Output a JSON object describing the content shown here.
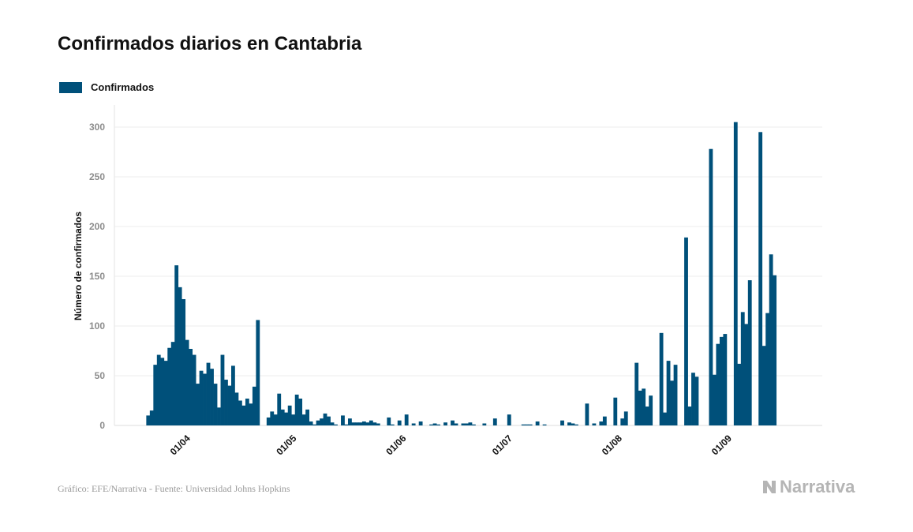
{
  "title": "Confirmados diarios en Cantabria",
  "legend": {
    "label": "Confirmados"
  },
  "footer": "Gráfico: EFE/Narrativa - Fuente: Universidad Johns Hopkins",
  "brand": "Narrativa",
  "colors": {
    "bar": "#00507a",
    "grid": "#ececec",
    "tick": "#8c8c8c",
    "title": "#111111"
  },
  "chart_data": {
    "type": "bar",
    "title": "Confirmados diarios en Cantabria",
    "xlabel": "",
    "ylabel": "Número de confirmados",
    "ylim": [
      0,
      320
    ],
    "yticks": [
      0,
      50,
      100,
      150,
      200,
      250,
      300
    ],
    "grid": true,
    "legend_position": "top-left",
    "x_start": "2020-03-12",
    "x_end": "2020-09-28",
    "xticks": [
      {
        "date": "2020-04-01",
        "label": "01/04"
      },
      {
        "date": "2020-05-01",
        "label": "01/05"
      },
      {
        "date": "2020-06-01",
        "label": "01/06"
      },
      {
        "date": "2020-07-01",
        "label": "01/07"
      },
      {
        "date": "2020-08-01",
        "label": "01/08"
      },
      {
        "date": "2020-09-01",
        "label": "01/09"
      }
    ],
    "series": [
      {
        "name": "Confirmados",
        "points": [
          [
            "2020-03-21",
            10
          ],
          [
            "2020-03-22",
            15
          ],
          [
            "2020-03-23",
            61
          ],
          [
            "2020-03-24",
            71
          ],
          [
            "2020-03-25",
            68
          ],
          [
            "2020-03-26",
            65
          ],
          [
            "2020-03-27",
            78
          ],
          [
            "2020-03-28",
            84
          ],
          [
            "2020-03-29",
            161
          ],
          [
            "2020-03-30",
            139
          ],
          [
            "2020-03-31",
            127
          ],
          [
            "2020-04-01",
            86
          ],
          [
            "2020-04-02",
            77
          ],
          [
            "2020-04-03",
            71
          ],
          [
            "2020-04-04",
            42
          ],
          [
            "2020-04-05",
            55
          ],
          [
            "2020-04-06",
            52
          ],
          [
            "2020-04-07",
            63
          ],
          [
            "2020-04-08",
            57
          ],
          [
            "2020-04-09",
            42
          ],
          [
            "2020-04-10",
            18
          ],
          [
            "2020-04-11",
            71
          ],
          [
            "2020-04-12",
            46
          ],
          [
            "2020-04-13",
            40
          ],
          [
            "2020-04-14",
            60
          ],
          [
            "2020-04-15",
            33
          ],
          [
            "2020-04-16",
            25
          ],
          [
            "2020-04-17",
            20
          ],
          [
            "2020-04-18",
            27
          ],
          [
            "2020-04-19",
            22
          ],
          [
            "2020-04-20",
            39
          ],
          [
            "2020-04-21",
            106
          ],
          [
            "2020-04-24",
            8
          ],
          [
            "2020-04-25",
            14
          ],
          [
            "2020-04-26",
            11
          ],
          [
            "2020-04-27",
            32
          ],
          [
            "2020-04-28",
            16
          ],
          [
            "2020-04-29",
            13
          ],
          [
            "2020-04-30",
            20
          ],
          [
            "2020-05-01",
            11
          ],
          [
            "2020-05-02",
            31
          ],
          [
            "2020-05-03",
            27
          ],
          [
            "2020-05-04",
            11
          ],
          [
            "2020-05-05",
            16
          ],
          [
            "2020-05-06",
            4
          ],
          [
            "2020-05-07",
            1
          ],
          [
            "2020-05-08",
            5
          ],
          [
            "2020-05-09",
            7
          ],
          [
            "2020-05-10",
            12
          ],
          [
            "2020-05-11",
            9
          ],
          [
            "2020-05-12",
            3
          ],
          [
            "2020-05-13",
            1
          ],
          [
            "2020-05-15",
            10
          ],
          [
            "2020-05-16",
            1
          ],
          [
            "2020-05-17",
            7
          ],
          [
            "2020-05-18",
            3
          ],
          [
            "2020-05-19",
            3
          ],
          [
            "2020-05-20",
            3
          ],
          [
            "2020-05-21",
            4
          ],
          [
            "2020-05-22",
            3
          ],
          [
            "2020-05-23",
            5
          ],
          [
            "2020-05-24",
            3
          ],
          [
            "2020-05-25",
            2
          ],
          [
            "2020-05-28",
            8
          ],
          [
            "2020-05-29",
            1
          ],
          [
            "2020-05-31",
            5
          ],
          [
            "2020-06-02",
            11
          ],
          [
            "2020-06-04",
            2
          ],
          [
            "2020-06-06",
            4
          ],
          [
            "2020-06-09",
            1
          ],
          [
            "2020-06-10",
            2
          ],
          [
            "2020-06-11",
            1
          ],
          [
            "2020-06-13",
            3
          ],
          [
            "2020-06-15",
            5
          ],
          [
            "2020-06-16",
            2
          ],
          [
            "2020-06-18",
            2
          ],
          [
            "2020-06-19",
            2
          ],
          [
            "2020-06-20",
            3
          ],
          [
            "2020-06-21",
            1
          ],
          [
            "2020-06-24",
            2
          ],
          [
            "2020-06-27",
            7
          ],
          [
            "2020-07-01",
            11
          ],
          [
            "2020-07-05",
            1
          ],
          [
            "2020-07-06",
            1
          ],
          [
            "2020-07-07",
            1
          ],
          [
            "2020-07-09",
            4
          ],
          [
            "2020-07-11",
            1
          ],
          [
            "2020-07-16",
            5
          ],
          [
            "2020-07-18",
            3
          ],
          [
            "2020-07-19",
            2
          ],
          [
            "2020-07-20",
            1
          ],
          [
            "2020-07-23",
            22
          ],
          [
            "2020-07-25",
            2
          ],
          [
            "2020-07-27",
            4
          ],
          [
            "2020-07-28",
            9
          ],
          [
            "2020-07-31",
            28
          ],
          [
            "2020-08-02",
            7
          ],
          [
            "2020-08-03",
            14
          ],
          [
            "2020-08-06",
            63
          ],
          [
            "2020-08-07",
            35
          ],
          [
            "2020-08-08",
            37
          ],
          [
            "2020-08-09",
            19
          ],
          [
            "2020-08-10",
            30
          ],
          [
            "2020-08-13",
            93
          ],
          [
            "2020-08-14",
            13
          ],
          [
            "2020-08-15",
            65
          ],
          [
            "2020-08-16",
            45
          ],
          [
            "2020-08-17",
            61
          ],
          [
            "2020-08-20",
            189
          ],
          [
            "2020-08-21",
            19
          ],
          [
            "2020-08-22",
            53
          ],
          [
            "2020-08-23",
            49
          ],
          [
            "2020-08-27",
            278
          ],
          [
            "2020-08-28",
            51
          ],
          [
            "2020-08-29",
            82
          ],
          [
            "2020-08-30",
            89
          ],
          [
            "2020-08-31",
            92
          ],
          [
            "2020-09-03",
            305
          ],
          [
            "2020-09-04",
            62
          ],
          [
            "2020-09-05",
            114
          ],
          [
            "2020-09-06",
            102
          ],
          [
            "2020-09-07",
            146
          ],
          [
            "2020-09-10",
            295
          ],
          [
            "2020-09-11",
            80
          ],
          [
            "2020-09-12",
            113
          ],
          [
            "2020-09-13",
            172
          ],
          [
            "2020-09-14",
            151
          ]
        ]
      }
    ]
  }
}
